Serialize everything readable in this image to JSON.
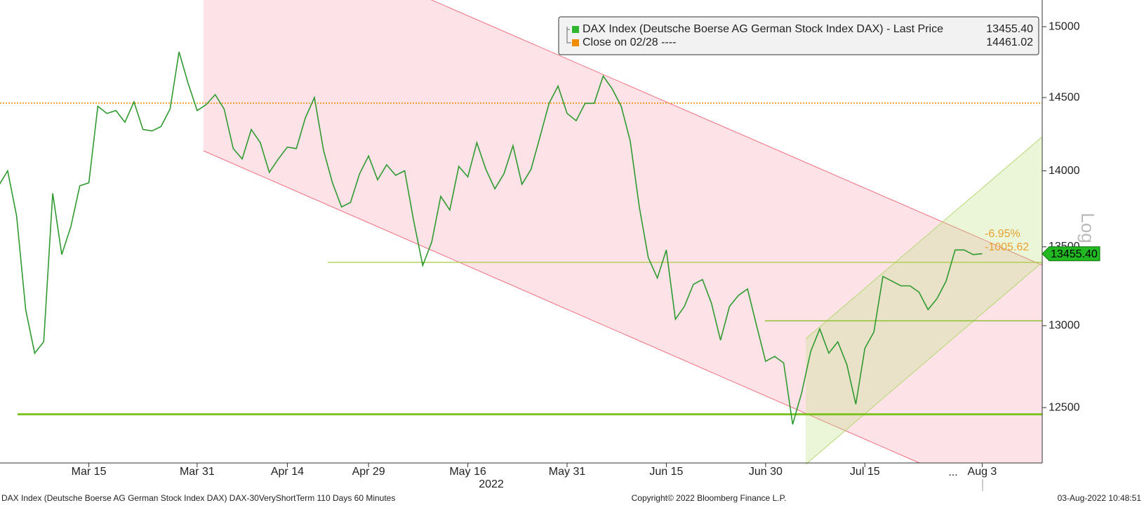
{
  "chart_data": {
    "type": "line",
    "log_scale": true,
    "color": "#2f9a2f",
    "ylim": [
      12173,
      15193
    ],
    "yticks": [
      12500,
      13000,
      13500,
      14000,
      14500,
      15000
    ],
    "axis_title": "Log",
    "year_label": "2022",
    "ellipsis_label": "...",
    "categories": [
      null,
      null,
      null,
      null,
      null,
      null,
      null,
      null,
      null,
      null,
      "Mar 15",
      null,
      null,
      null,
      null,
      null,
      null,
      null,
      null,
      null,
      null,
      null,
      "Mar 31",
      null,
      null,
      null,
      null,
      null,
      null,
      null,
      null,
      null,
      "Apr 14",
      null,
      null,
      null,
      null,
      null,
      null,
      null,
      null,
      "Apr 29",
      null,
      null,
      null,
      null,
      null,
      null,
      null,
      null,
      null,
      null,
      "May 16",
      null,
      null,
      null,
      null,
      null,
      null,
      null,
      null,
      null,
      null,
      "May 31",
      null,
      null,
      null,
      null,
      null,
      null,
      null,
      null,
      null,
      null,
      "Jun 15",
      null,
      null,
      null,
      null,
      null,
      null,
      null,
      null,
      null,
      null,
      "Jun 30",
      null,
      null,
      null,
      null,
      null,
      null,
      null,
      null,
      null,
      null,
      "Jul 15",
      null,
      null,
      null,
      null,
      null,
      null,
      null,
      null,
      null,
      null,
      null,
      null,
      "Aug 3",
      null,
      null,
      null,
      null,
      null,
      null
    ],
    "values": [
      13900,
      14000,
      13700,
      13100,
      12830,
      12900,
      13850,
      13450,
      13630,
      13900,
      13920,
      14440,
      14390,
      14410,
      14330,
      14470,
      14280,
      14270,
      14300,
      14420,
      14820,
      14600,
      14410,
      14450,
      14520,
      14420,
      14150,
      14080,
      14280,
      14190,
      13990,
      14080,
      14160,
      14150,
      14360,
      14500,
      14140,
      13920,
      13760,
      13790,
      13980,
      14100,
      13940,
      14040,
      13970,
      14000,
      13670,
      13380,
      13530,
      13830,
      13740,
      14030,
      13960,
      14190,
      14010,
      13880,
      13980,
      14170,
      13910,
      14010,
      14230,
      14460,
      14580,
      14390,
      14340,
      14460,
      14460,
      14650,
      14560,
      14440,
      14200,
      13760,
      13430,
      13300,
      13480,
      13040,
      13120,
      13260,
      13290,
      13140,
      12910,
      13120,
      13190,
      13230,
      13000,
      12780,
      12810,
      12770,
      12400,
      12590,
      12840,
      12980,
      12830,
      12900,
      12760,
      12520,
      12860,
      12960,
      13310,
      13280,
      13250,
      13250,
      13210,
      13100,
      13170,
      13280,
      13480,
      13480,
      13450,
      13455.4,
      null,
      null,
      null,
      null,
      null,
      null
    ],
    "levels": [
      {
        "value": 14461.02,
        "color": "#f08c00",
        "dash": true
      },
      {
        "value": 12460,
        "color": "#7cc520",
        "width": 3
      },
      {
        "value": 13400,
        "color": "#a8cc40",
        "width": 1.2
      },
      {
        "value": 13030,
        "color": "#8cc030",
        "width": 1.5
      }
    ],
    "legend": [
      {
        "name": "DAX Index (Deutsche Boerse AG German Stock Index DAX) - Last Price",
        "value": "13455.40",
        "color": "#2fb52f"
      },
      {
        "name": "Close on 02/28 ----",
        "value": "14461.02",
        "color": "#f08c00"
      }
    ],
    "annotations": [
      "-6.95%",
      "-1005.62"
    ],
    "footer": {
      "left": "DAX Index (Deutsche Boerse AG German Stock Index DAX) DAX-30VeryShortTerm 110 Days 60 Minutes",
      "center": "Copyright© 2022 Bloomberg Finance L.P.",
      "right": "03-Aug-2022 10:48:51"
    }
  }
}
